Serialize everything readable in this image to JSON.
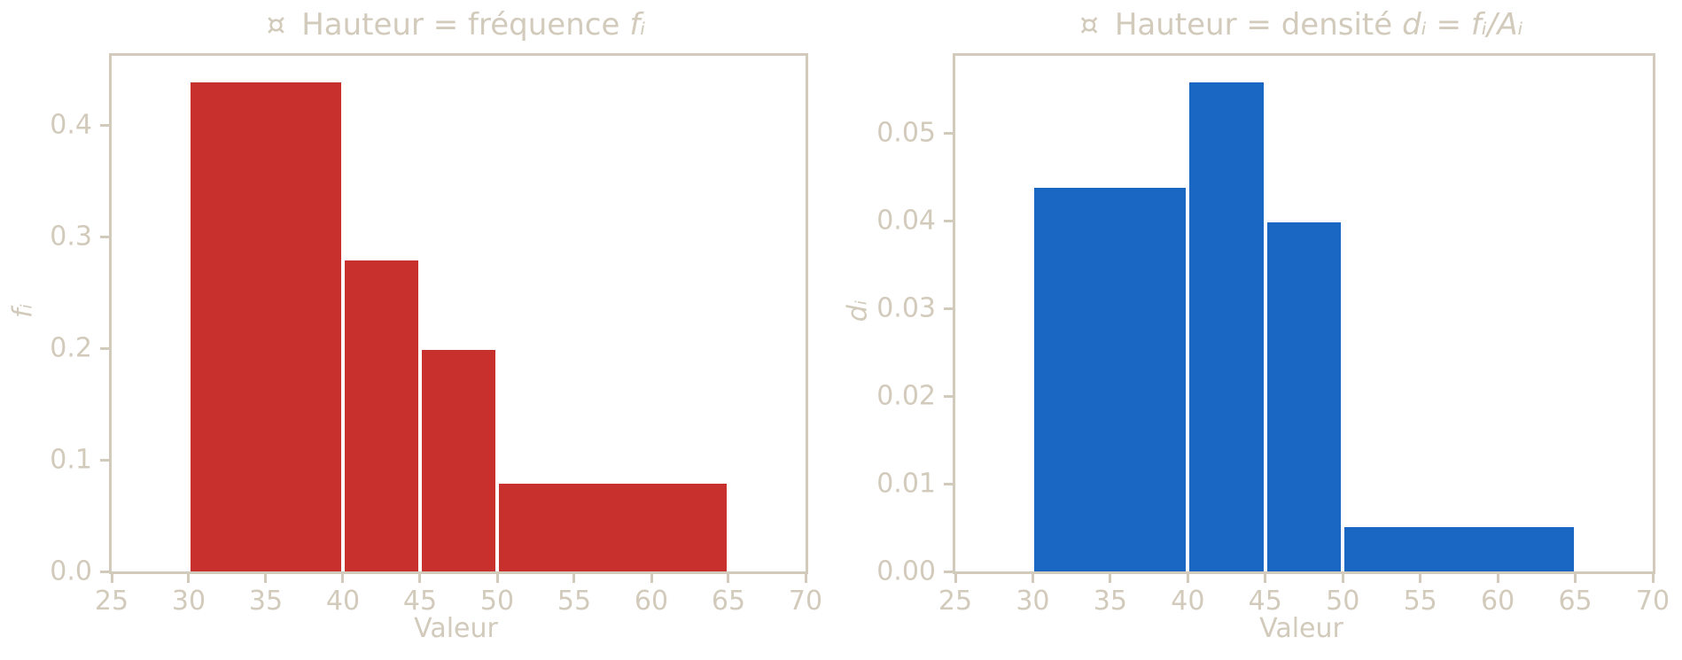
{
  "theme": {
    "axis_color": "#d2cabb",
    "background": "#ffffff",
    "bar_edge_color": "#ffffff",
    "red": "#c7302c",
    "blue": "#1a67c3"
  },
  "chart_data": [
    {
      "type": "bar",
      "panel": "left",
      "title": {
        "symbol": "¤",
        "text": "Hauteur = fréquence",
        "math": "fᵢ"
      },
      "xlabel": "Valeur",
      "ylabel": "fᵢ",
      "color": "#c7302c",
      "legend": "none",
      "grid": false,
      "xlim": [
        25,
        70
      ],
      "ylim": [
        0,
        0.462
      ],
      "xticks": [
        "25",
        "30",
        "35",
        "40",
        "45",
        "50",
        "55",
        "60",
        "65",
        "70"
      ],
      "xtick_values": [
        25,
        30,
        35,
        40,
        45,
        50,
        55,
        60,
        65,
        70
      ],
      "yticks": [
        "0.0",
        "0.1",
        "0.2",
        "0.3",
        "0.4"
      ],
      "ytick_values": [
        0,
        0.1,
        0.2,
        0.3,
        0.4
      ],
      "bins": [
        {
          "from": 30,
          "to": 40,
          "height": 0.44
        },
        {
          "from": 40,
          "to": 45,
          "height": 0.28
        },
        {
          "from": 45,
          "to": 50,
          "height": 0.2
        },
        {
          "from": 50,
          "to": 65,
          "height": 0.08
        }
      ]
    },
    {
      "type": "bar",
      "panel": "right",
      "title": {
        "symbol": "¤",
        "text": "Hauteur = densité",
        "math": "dᵢ = fᵢ/Aᵢ"
      },
      "xlabel": "Valeur",
      "ylabel": "dᵢ",
      "color": "#1a67c3",
      "legend": "none",
      "grid": false,
      "xlim": [
        25,
        70
      ],
      "ylim": [
        0,
        0.0588
      ],
      "xticks": [
        "25",
        "30",
        "35",
        "40",
        "45",
        "50",
        "55",
        "60",
        "65",
        "70"
      ],
      "xtick_values": [
        25,
        30,
        35,
        40,
        45,
        50,
        55,
        60,
        65,
        70
      ],
      "yticks": [
        "0.00",
        "0.01",
        "0.02",
        "0.03",
        "0.04",
        "0.05"
      ],
      "ytick_values": [
        0,
        0.01,
        0.02,
        0.03,
        0.04,
        0.05
      ],
      "bins": [
        {
          "from": 30,
          "to": 40,
          "height": 0.044
        },
        {
          "from": 40,
          "to": 45,
          "height": 0.056
        },
        {
          "from": 45,
          "to": 50,
          "height": 0.04
        },
        {
          "from": 50,
          "to": 65,
          "height": 0.0053
        }
      ]
    }
  ]
}
